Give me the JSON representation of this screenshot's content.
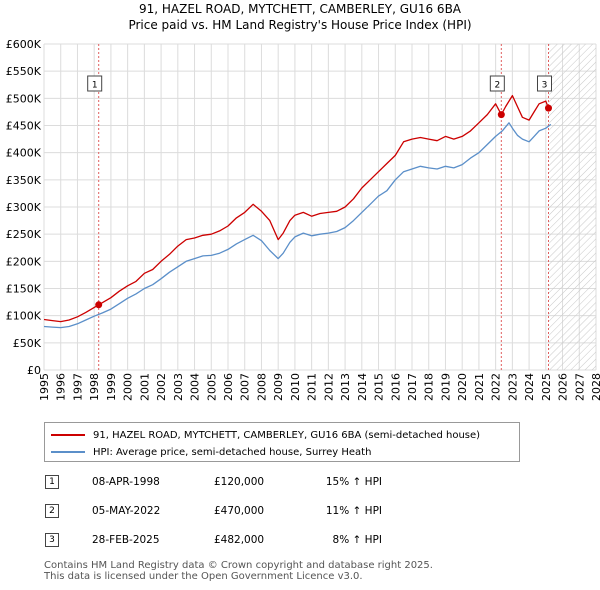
{
  "chart_data": {
    "type": "line",
    "title": "91, HAZEL ROAD, MYTCHETT, CAMBERLEY, GU16 6BA",
    "subtitle": "Price paid vs. HM Land Registry's House Price Index (HPI)",
    "xlim": [
      1995,
      2028
    ],
    "ylim": [
      0,
      600000
    ],
    "x_ticks": [
      1995,
      1996,
      1997,
      1998,
      1999,
      2000,
      2001,
      2002,
      2003,
      2004,
      2005,
      2006,
      2007,
      2008,
      2009,
      2010,
      2011,
      2012,
      2013,
      2014,
      2015,
      2016,
      2017,
      2018,
      2019,
      2020,
      2021,
      2022,
      2023,
      2024,
      2025,
      2026,
      2027,
      2028
    ],
    "y_ticks": [
      0,
      50000,
      100000,
      150000,
      200000,
      250000,
      300000,
      350000,
      400000,
      450000,
      500000,
      550000,
      600000
    ],
    "y_tick_labels": [
      "£0",
      "£50K",
      "£100K",
      "£150K",
      "£200K",
      "£250K",
      "£300K",
      "£350K",
      "£400K",
      "£450K",
      "£500K",
      "£550K",
      "£600K"
    ],
    "series": [
      {
        "name": "91, HAZEL ROAD, MYTCHETT, CAMBERLEY, GU16 6BA (semi-detached house)",
        "color": "#cc0000",
        "x": [
          1995,
          1995.5,
          1996,
          1996.5,
          1997,
          1997.5,
          1998.27,
          1999,
          1999.5,
          2000,
          2000.5,
          2001,
          2001.5,
          2002,
          2002.5,
          2003,
          2003.5,
          2004,
          2004.5,
          2005,
          2005.5,
          2006,
          2006.5,
          2007,
          2007.5,
          2008,
          2008.5,
          2009,
          2009.3,
          2009.7,
          2010,
          2010.5,
          2011,
          2011.5,
          2012,
          2012.5,
          2013,
          2013.5,
          2014,
          2014.5,
          2015,
          2015.5,
          2016,
          2016.5,
          2017,
          2017.5,
          2018,
          2018.5,
          2019,
          2019.5,
          2020,
          2020.5,
          2021,
          2021.5,
          2022,
          2022.34,
          2022.6,
          2023,
          2023.3,
          2023.6,
          2024,
          2024.3,
          2024.6,
          2025,
          2025.16
        ],
        "values": [
          93000,
          91000,
          89000,
          92000,
          98000,
          106000,
          120000,
          133000,
          145000,
          155000,
          163000,
          178000,
          185000,
          200000,
          213000,
          228000,
          240000,
          243000,
          248000,
          250000,
          256000,
          265000,
          280000,
          290000,
          305000,
          292000,
          275000,
          240000,
          252000,
          275000,
          285000,
          290000,
          283000,
          288000,
          290000,
          292000,
          300000,
          315000,
          335000,
          350000,
          365000,
          380000,
          395000,
          420000,
          425000,
          428000,
          425000,
          422000,
          430000,
          425000,
          430000,
          440000,
          455000,
          470000,
          490000,
          470000,
          485000,
          505000,
          485000,
          465000,
          460000,
          475000,
          490000,
          495000,
          482000
        ]
      },
      {
        "name": "HPI: Average price, semi-detached house, Surrey Heath",
        "color": "#5b8fc9",
        "x": [
          1995,
          1995.5,
          1996,
          1996.5,
          1997,
          1997.5,
          1998,
          1998.5,
          1999,
          1999.5,
          2000,
          2000.5,
          2001,
          2001.5,
          2002,
          2002.5,
          2003,
          2003.5,
          2004,
          2004.5,
          2005,
          2005.5,
          2006,
          2006.5,
          2007,
          2007.5,
          2008,
          2008.5,
          2009,
          2009.3,
          2009.7,
          2010,
          2010.5,
          2011,
          2011.5,
          2012,
          2012.5,
          2013,
          2013.5,
          2014,
          2014.5,
          2015,
          2015.5,
          2016,
          2016.5,
          2017,
          2017.5,
          2018,
          2018.5,
          2019,
          2019.5,
          2020,
          2020.5,
          2021,
          2021.5,
          2022,
          2022.4,
          2022.8,
          2023,
          2023.3,
          2023.6,
          2024,
          2024.3,
          2024.6,
          2025,
          2025.3
        ],
        "values": [
          80000,
          79000,
          78000,
          80000,
          85000,
          92000,
          99000,
          105000,
          112000,
          122000,
          132000,
          140000,
          150000,
          157000,
          168000,
          180000,
          190000,
          200000,
          205000,
          210000,
          211000,
          215000,
          222000,
          232000,
          240000,
          248000,
          238000,
          220000,
          205000,
          215000,
          235000,
          245000,
          252000,
          247000,
          250000,
          252000,
          255000,
          262000,
          275000,
          290000,
          305000,
          320000,
          330000,
          350000,
          365000,
          370000,
          375000,
          372000,
          370000,
          375000,
          372000,
          378000,
          390000,
          400000,
          415000,
          430000,
          440000,
          455000,
          445000,
          432000,
          425000,
          420000,
          430000,
          440000,
          445000,
          452000
        ]
      }
    ],
    "transactions": [
      {
        "marker": "1",
        "x": 1998.27,
        "price": 120000
      },
      {
        "marker": "2",
        "x": 2022.34,
        "price": 470000
      },
      {
        "marker": "3",
        "x": 2025.16,
        "price": 482000
      }
    ],
    "hatch_from": 2025.16
  },
  "legend": {
    "items": [
      {
        "label": "91, HAZEL ROAD, MYTCHETT, CAMBERLEY, GU16 6BA (semi-detached house)",
        "color": "#cc0000"
      },
      {
        "label": "HPI: Average price, semi-detached house, Surrey Heath",
        "color": "#5b8fc9"
      }
    ]
  },
  "table": {
    "rows": [
      {
        "marker": "1",
        "date": "08-APR-1998",
        "price": "£120,000",
        "hpi": "15% ↑ HPI"
      },
      {
        "marker": "2",
        "date": "05-MAY-2022",
        "price": "£470,000",
        "hpi": "11% ↑ HPI"
      },
      {
        "marker": "3",
        "date": "28-FEB-2025",
        "price": "£482,000",
        "hpi": "8% ↑ HPI"
      }
    ]
  },
  "footer": {
    "line1": "Contains HM Land Registry data © Crown copyright and database right 2025.",
    "line2": "This data is licensed under the Open Government Licence v3.0."
  }
}
